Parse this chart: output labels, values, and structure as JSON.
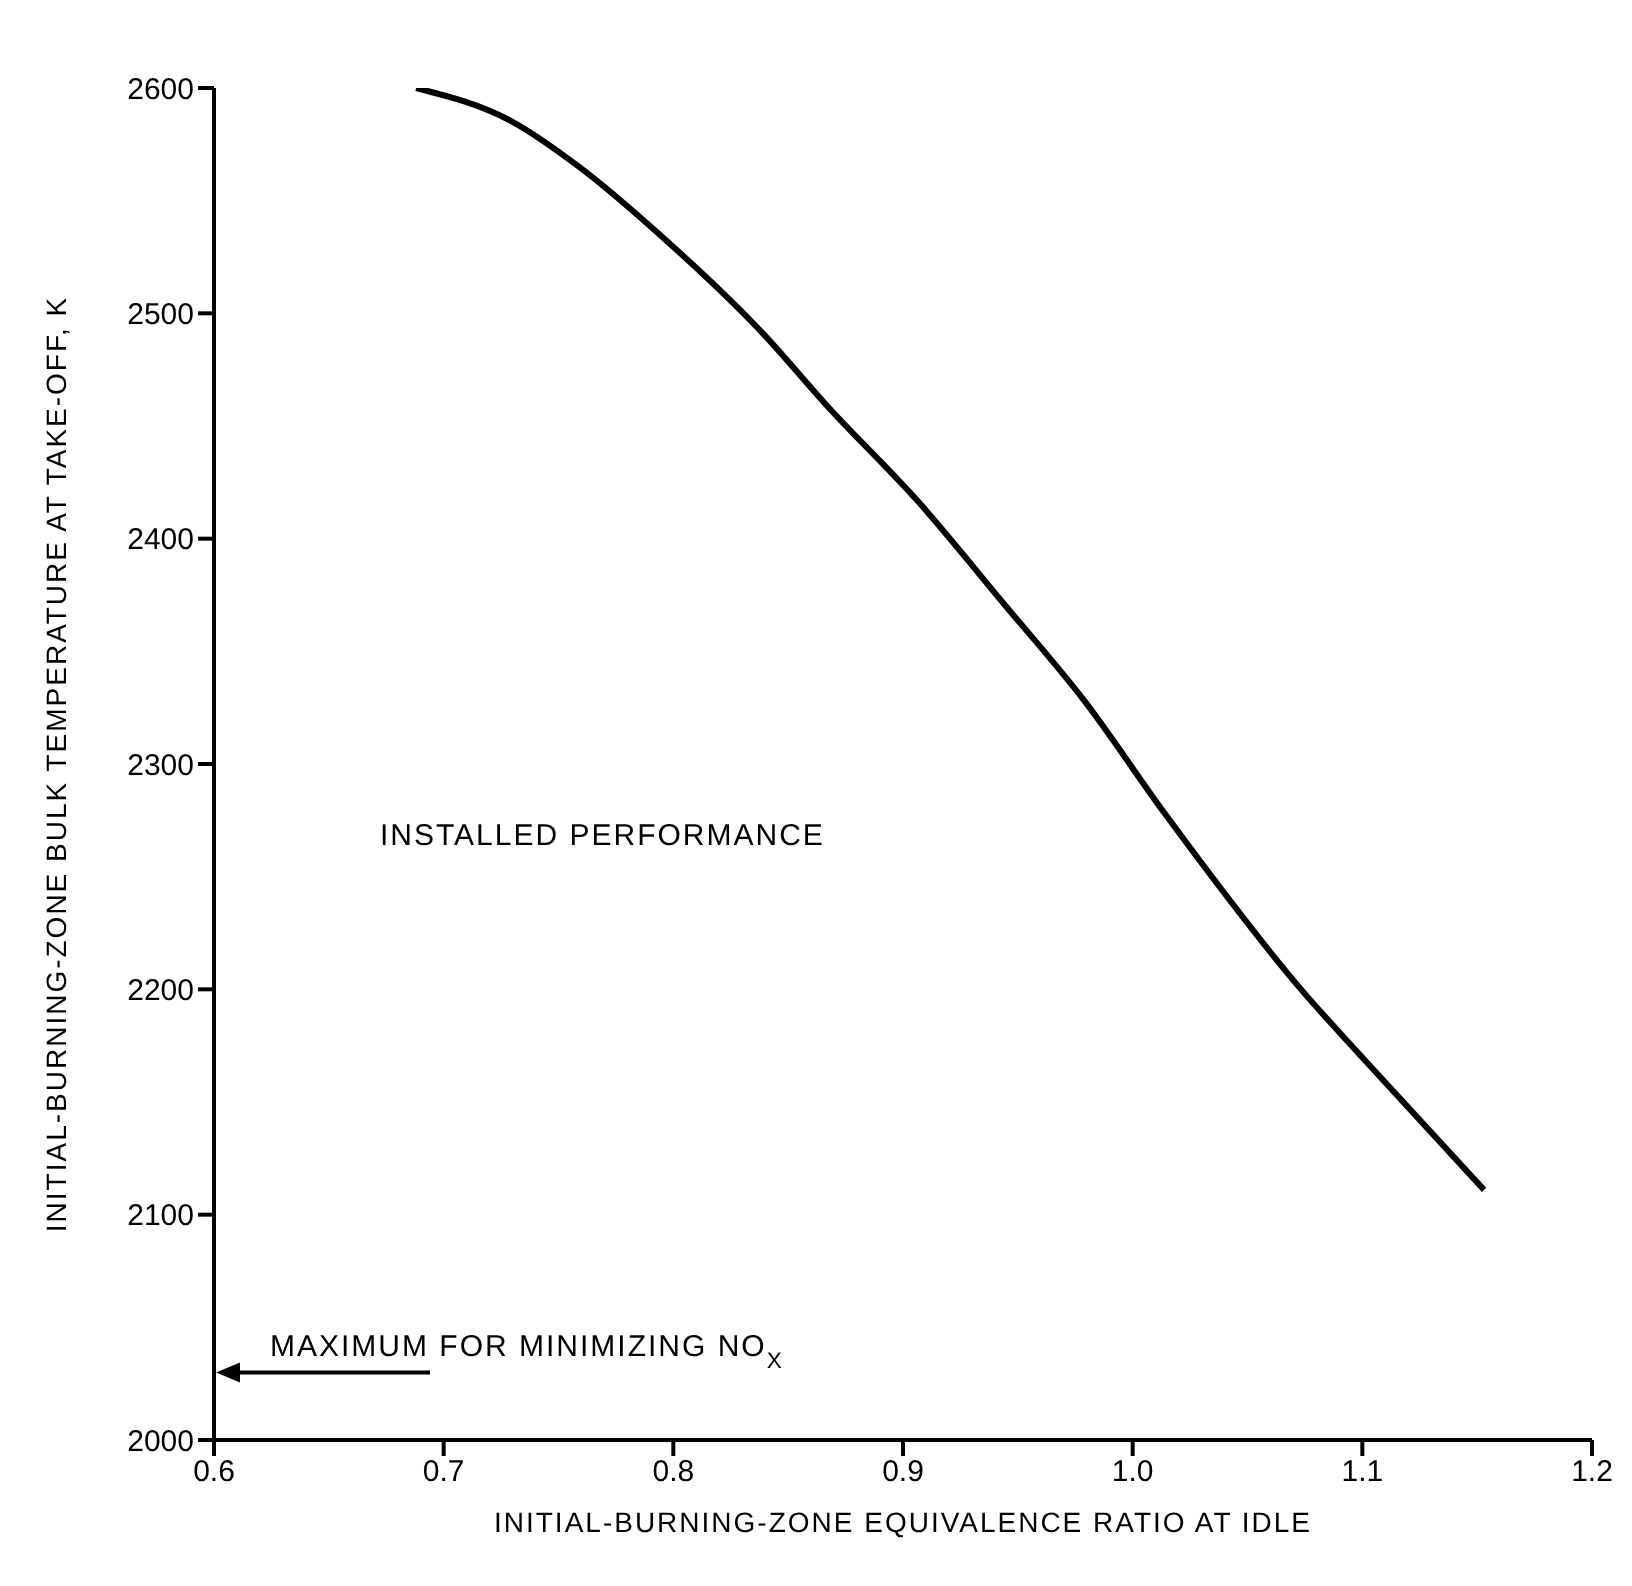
{
  "chart_data": {
    "type": "line",
    "xlabel": "INITIAL-BURNING-ZONE EQUIVALENCE RATIO AT IDLE",
    "ylabel": "INITIAL-BURNING-ZONE BULK TEMPERATURE AT TAKE-OFF, K",
    "xlim": [
      0.6,
      1.2
    ],
    "xticks": [
      0.6,
      0.7,
      0.8,
      0.9,
      {
        "value": 1.0,
        "label": "1.0"
      },
      1.1,
      1.2
    ],
    "ylim": [
      2000,
      2600
    ],
    "yticks": [
      2000,
      2100,
      2200,
      2300,
      2400,
      2500,
      2600
    ],
    "grid": false,
    "annotations": [
      "INSTALLED PERFORMANCE",
      "MAXIMUM FOR MINIMIZING NO$_{X}$"
    ],
    "series": [
      {
        "color": "#000000",
        "x": [
          0.688,
          0.73,
          0.759,
          0.794,
          0.84,
          0.866,
          0.907,
          0.944,
          0.979,
          1.014,
          1.075,
          1.098,
          1.153
        ],
        "values": [
          2600,
          2585,
          2565,
          2535,
          2490,
          2460,
          2416,
          2371,
          2328,
          2278,
          2198,
          2172,
          2111
        ]
      }
    ]
  }
}
